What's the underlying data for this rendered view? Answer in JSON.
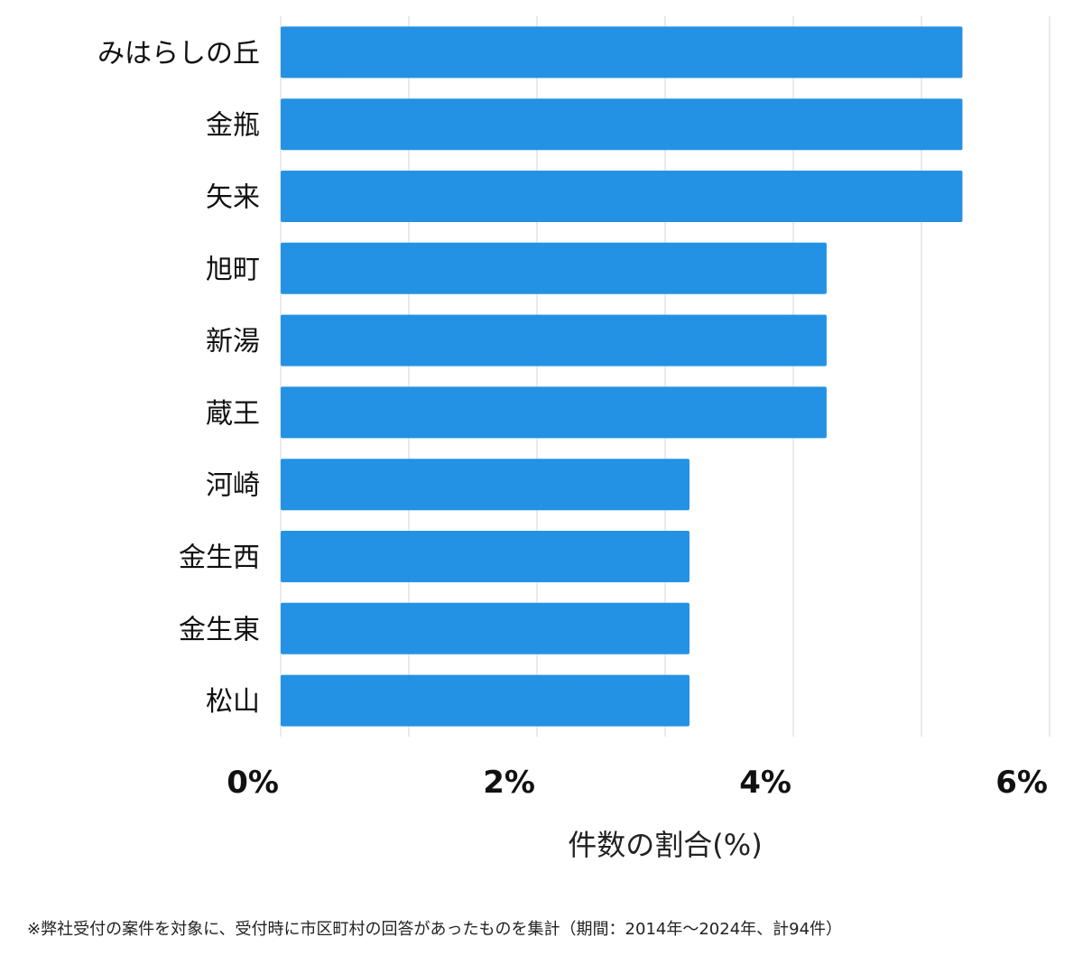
{
  "chart_data": {
    "type": "bar",
    "orientation": "horizontal",
    "categories": [
      "みはらしの丘",
      "金瓶",
      "矢来",
      "旭町",
      "新湯",
      "蔵王",
      "河崎",
      "金生西",
      "金生東",
      "松山"
    ],
    "values": [
      5.32,
      5.32,
      5.32,
      4.26,
      4.26,
      4.26,
      3.19,
      3.19,
      3.19,
      3.19
    ],
    "xlabel": "件数の割合(%)",
    "ylabel": "",
    "xlim": [
      0,
      6
    ],
    "xticks": [
      "0%",
      "2%",
      "4%",
      "6%"
    ],
    "grid": true,
    "bar_color": "#2492e4"
  },
  "footnote": "※弊社受付の案件を対象に、受付時に市区町村の回答があったものを集計（期間：2014年～2024年、計94件）"
}
